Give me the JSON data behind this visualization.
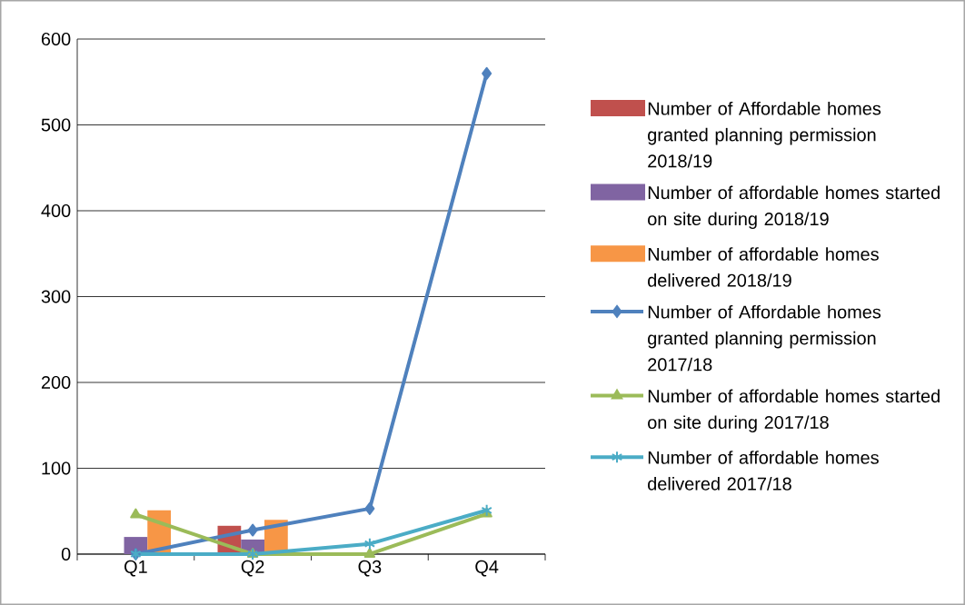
{
  "chart_data": {
    "type": "bar",
    "categories": [
      "Q1",
      "Q2",
      "Q3",
      "Q4"
    ],
    "series": [
      {
        "name": "Number of Affordable homes granted planning permission 2018/19",
        "color": "#c0504d",
        "values": [
          0,
          33,
          null,
          null
        ]
      },
      {
        "name": "Number of affordable homes started on site during 2018/19",
        "color": "#8064a2",
        "values": [
          20,
          17,
          null,
          null
        ]
      },
      {
        "name": "Number of affordable homes delivered 2018/19",
        "color": "#f79646",
        "values": [
          51,
          40,
          null,
          null
        ]
      },
      {
        "name": "Number of Affordable homes granted planning permission 2017/18",
        "type": "line",
        "color": "#4f81bd",
        "marker": "diamond",
        "values": [
          0,
          28,
          53,
          560
        ]
      },
      {
        "name": "Number of affordable homes started on site during 2017/18",
        "type": "line",
        "color": "#9bbb59",
        "marker": "triangle",
        "values": [
          46,
          0,
          0,
          47
        ]
      },
      {
        "name": "Number of affordable homes delivered 2017/18",
        "type": "line",
        "color": "#4bacc6",
        "marker": "cross",
        "values": [
          0,
          0,
          12,
          51
        ]
      }
    ],
    "ylim": [
      0,
      600
    ],
    "yticks": [
      0,
      100,
      200,
      300,
      400,
      500,
      600
    ],
    "grid": "y",
    "legend": "right"
  }
}
